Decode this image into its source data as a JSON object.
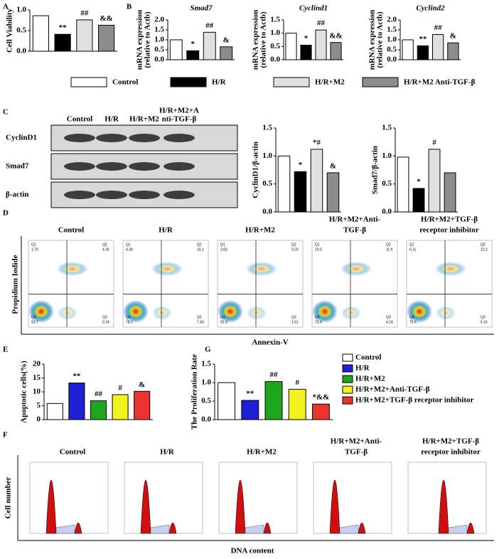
{
  "panel_labels": [
    "A",
    "B",
    "C",
    "D",
    "E",
    "F",
    "G"
  ],
  "chart_data": [
    {
      "type": "bar",
      "y_label": [
        "Cell Viability"
      ],
      "ylim": [
        0,
        1.0
      ],
      "yticks": [
        {
          "value": 0,
          "label": "0.0"
        },
        {
          "value": 0.5,
          "label": "0.5"
        },
        {
          "value": 1.0,
          "label": "1.0"
        }
      ],
      "values": [
        0.86,
        0.41,
        0.76,
        0.63
      ],
      "colors": [
        "#ffffff",
        "#000000",
        "#e0e0e0",
        "#8c8c8c"
      ],
      "annotations": [
        null,
        "**",
        "##",
        "&&"
      ]
    },
    {
      "type": "bar",
      "title": "Smad7",
      "y_label": [
        "mRNA expression",
        "(relative to Actb)"
      ],
      "ylim": [
        0,
        2.0
      ],
      "yticks": [
        {
          "value": 0,
          "label": "0.0"
        },
        {
          "value": 0.5,
          "label": "0.5"
        },
        {
          "value": 1.0,
          "label": "1.0"
        },
        {
          "value": 1.5,
          "label": "1.5"
        },
        {
          "value": 2.0,
          "label": "2.0"
        }
      ],
      "values": [
        1.0,
        0.45,
        1.38,
        0.65
      ],
      "colors": [
        "#ffffff",
        "#000000",
        "#e0e0e0",
        "#8c8c8c"
      ],
      "annotations": [
        null,
        "*",
        "##",
        "&"
      ]
    },
    {
      "type": "bar",
      "title": "Cyclind1",
      "y_label": [
        "mRNA expression",
        "(relative to Actb)"
      ],
      "ylim": [
        0,
        1.5
      ],
      "yticks": [
        {
          "value": 0,
          "label": "0.0"
        },
        {
          "value": 0.5,
          "label": "0.5"
        },
        {
          "value": 1.0,
          "label": "1.0"
        },
        {
          "value": 1.5,
          "label": "1.5"
        }
      ],
      "values": [
        1.0,
        0.55,
        1.12,
        0.65
      ],
      "colors": [
        "#ffffff",
        "#000000",
        "#e0e0e0",
        "#8c8c8c"
      ],
      "annotations": [
        null,
        "*",
        "##",
        "&&"
      ]
    },
    {
      "type": "bar",
      "title": "Cyclind2",
      "y_label": [
        "mRNA expression",
        "(relative to Actb)"
      ],
      "ylim": [
        0,
        2.0
      ],
      "yticks": [
        {
          "value": 0,
          "label": "0.0"
        },
        {
          "value": 0.5,
          "label": "0.5"
        },
        {
          "value": 1.0,
          "label": "1.0"
        },
        {
          "value": 1.5,
          "label": "1.5"
        },
        {
          "value": 2.0,
          "label": "2.0"
        }
      ],
      "values": [
        1.0,
        0.7,
        1.27,
        0.85
      ],
      "colors": [
        "#ffffff",
        "#000000",
        "#e0e0e0",
        "#8c8c8c"
      ],
      "annotations": [
        null,
        "**",
        "##",
        "&"
      ]
    },
    {
      "type": "bar",
      "y_label": [
        "CyclinD1/β-actin"
      ],
      "ylim": [
        0,
        1.5
      ],
      "yticks": [
        {
          "value": 0,
          "label": "0.0"
        },
        {
          "value": 0.5,
          "label": "0.5"
        },
        {
          "value": 1.0,
          "label": "1.0"
        },
        {
          "value": 1.5,
          "label": "1.5"
        }
      ],
      "values": [
        1.0,
        0.72,
        1.12,
        0.7
      ],
      "colors": [
        "#ffffff",
        "#000000",
        "#e0e0e0",
        "#8c8c8c"
      ],
      "annotations": [
        null,
        "*",
        "*#",
        "&"
      ]
    },
    {
      "type": "bar",
      "y_label": [
        "Smad7/β-actin"
      ],
      "ylim": [
        0,
        1.5
      ],
      "yticks": [
        {
          "value": 0,
          "label": "0.0"
        },
        {
          "value": 0.5,
          "label": "0.5"
        },
        {
          "value": 1.0,
          "label": "1.0"
        },
        {
          "value": 1.5,
          "label": "1.5"
        }
      ],
      "values": [
        0.98,
        0.42,
        1.12,
        0.7
      ],
      "colors": [
        "#ffffff",
        "#000000",
        "#e0e0e0",
        "#8c8c8c"
      ],
      "annotations": [
        null,
        "*",
        "#",
        null
      ]
    },
    {
      "type": "bar",
      "y_label": [
        "Apoptotic cells(%)"
      ],
      "ylim": [
        0,
        20
      ],
      "yticks": [
        0,
        5,
        10,
        15,
        20
      ],
      "values": [
        5.8,
        13.2,
        6.8,
        9.0,
        10.2
      ],
      "colors": [
        "#ffffff",
        "#1f1fd6",
        "#1fa61f",
        "#f2f21f",
        "#e8332e"
      ],
      "annotations": [
        null,
        "**",
        "##",
        "#",
        "&"
      ]
    },
    {
      "type": "bar",
      "y_label": [
        "The Proliferation Rate"
      ],
      "ylim": [
        0,
        1.5
      ],
      "yticks": [
        {
          "value": 0,
          "label": "0.0"
        },
        {
          "value": 0.5,
          "label": "0.5"
        },
        {
          "value": 1.0,
          "label": "1.0"
        },
        {
          "value": 1.5,
          "label": "1.5"
        }
      ],
      "values": [
        1.0,
        0.52,
        1.03,
        0.82,
        0.42
      ],
      "colors": [
        "#ffffff",
        "#1f1fd6",
        "#1fa61f",
        "#f2f21f",
        "#e8332e"
      ],
      "annotations": [
        null,
        "**",
        "##",
        "#",
        "*&&"
      ]
    }
  ],
  "legend_top": [
    {
      "name": "Control",
      "color": "#ffffff"
    },
    {
      "name": "H/R",
      "color": "#000000"
    },
    {
      "name": "H/R+M2",
      "color": "#e0e0e0"
    },
    {
      "name": "H/R+M2 Anti-TGF-β",
      "color": "#8c8c8c"
    }
  ],
  "legend_bottom": [
    {
      "name": "Control",
      "color": "#ffffff"
    },
    {
      "name": "H/R",
      "color": "#1f1fd6"
    },
    {
      "name": "H/R+M2",
      "color": "#1fa61f"
    },
    {
      "name": "H/R+M2+Anti-TGF-β",
      "color": "#f2f21f"
    },
    {
      "name": "H/R+M2+TGF-β receptor inhibitor",
      "color": "#e8332e"
    }
  ],
  "blot": {
    "lanes": [
      [
        "Control"
      ],
      [
        "H/R"
      ],
      [
        "H/R+M2"
      ],
      [
        "H/R+M2+A",
        "nti-TGF-β"
      ]
    ],
    "rows": [
      "CyclinD1",
      "Smad7",
      "β-actin"
    ]
  },
  "flow_cytometry": {
    "y_label": "Propidium Iodide",
    "x_label": "Annexin-V",
    "quadrant_names": [
      "Q1",
      "Q2",
      "Q3",
      "Q4"
    ],
    "plots": [
      {
        "title": [
          "Control"
        ],
        "q1": "1.79",
        "q2": "4.26",
        "q3": "0.24",
        "q4": "93.7"
      },
      {
        "title": [
          "H/R"
        ],
        "q1": "4.39",
        "q2": "10.1",
        "q3": "7.43",
        "q4": "78.1"
      },
      {
        "title": [
          "H/R+M2"
        ],
        "q1": "3.83",
        "q2": "3.20",
        "q3": "1.61",
        "q4": "92.3"
      },
      {
        "title": [
          "H/R+M2+Anti-",
          "TGF-β"
        ],
        "q1": "10.5",
        "q2": "11.9",
        "q3": "4.24",
        "q4": "73.4"
      },
      {
        "title": [
          "H/R+M2+TGF-β",
          "receptor inhibitor"
        ],
        "q1": "6.11",
        "q2": "12.2",
        "q3": "6.15",
        "q4": "75.6"
      }
    ]
  },
  "cell_cycle": {
    "y_label": "Cell number",
    "x_label": "DNA content",
    "titles": [
      [
        "Control"
      ],
      [
        "H/R"
      ],
      [
        "H/R+M2"
      ],
      [
        "H/R+M2+Anti-",
        "TGF-β"
      ],
      [
        "H/R+M2+TGF-β",
        "receptor inhibitor"
      ]
    ]
  }
}
